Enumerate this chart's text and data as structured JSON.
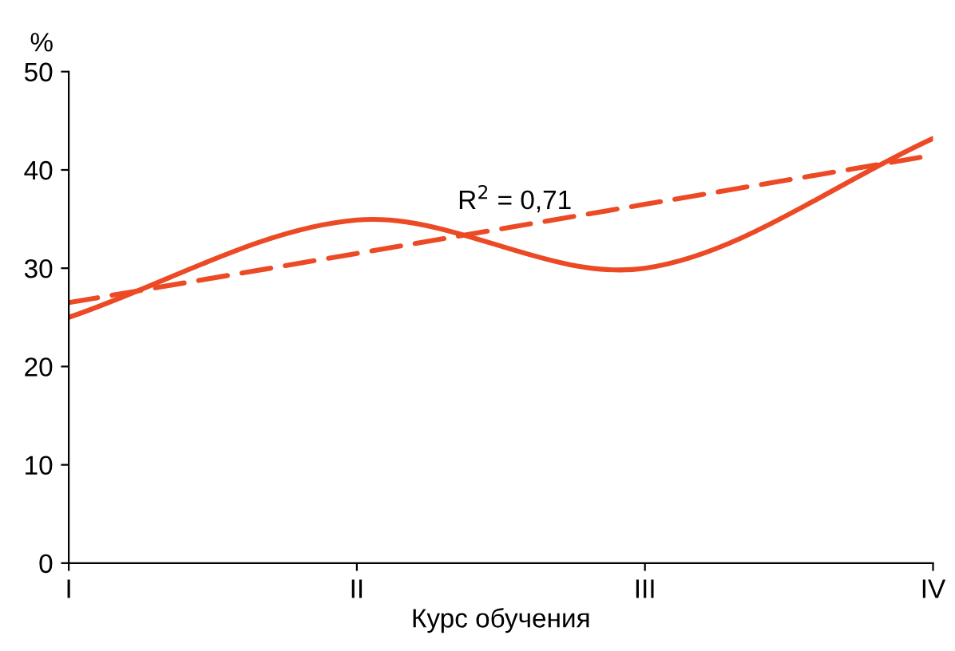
{
  "chart_data": {
    "type": "line",
    "ylabel": "%",
    "xlabel": "Курс обучения",
    "categories": [
      "I",
      "II",
      "III",
      "IV"
    ],
    "ylim": [
      0,
      50
    ],
    "yticks": [
      0,
      10,
      20,
      30,
      40,
      50
    ],
    "series": [
      {
        "color": "#ec4a25",
        "line_style": "solid",
        "values": [
          25.0,
          34.9,
          30.0,
          43.2
        ]
      },
      {
        "color": "#ec4a25",
        "line_style": "dashed",
        "values": [
          26.5,
          31.5,
          36.5,
          41.5
        ]
      }
    ],
    "annotations": [
      "R$^{2}$ = 0,71"
    ]
  }
}
